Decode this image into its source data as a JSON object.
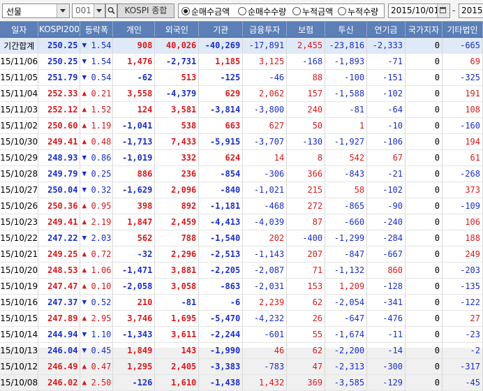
{
  "toolbar": {
    "market_select": "선물",
    "code": "001",
    "code_name": "KOSPI 종합",
    "radios": [
      {
        "label": "순매수금액",
        "selected": true
      },
      {
        "label": "순매수수량",
        "selected": false
      },
      {
        "label": "누적금액",
        "selected": false
      },
      {
        "label": "누적수량",
        "selected": false
      }
    ],
    "start_date": "2015/10/01",
    "date_separator": "-",
    "end_date": "2015/"
  },
  "table": {
    "headers": [
      "일자",
      "KOSPI200",
      "등락폭",
      "개인",
      "외국인",
      "기관",
      "금융투자",
      "보험",
      "투신",
      "연기금",
      "국가지자",
      "기타법인"
    ],
    "rows": [
      {
        "date": "기간합계",
        "kospi": "250.25",
        "dir": "down",
        "chg": "1.54",
        "v": [
          "908",
          "40,026",
          "-40,269",
          "-17,891",
          "2,455",
          "-23,816",
          "-2,333",
          "0",
          "-665"
        ],
        "total": true
      },
      {
        "date": "15/11/06",
        "kospi": "250.25",
        "dir": "down",
        "chg": "1.54",
        "v": [
          "1,476",
          "-2,731",
          "1,185",
          "3,125",
          "-168",
          "-1,893",
          "-71",
          "0",
          "69"
        ]
      },
      {
        "date": "15/11/05",
        "kospi": "251.79",
        "dir": "down",
        "chg": "0.54",
        "v": [
          "-62",
          "513",
          "-125",
          "-46",
          "88",
          "-100",
          "-151",
          "0",
          "-325"
        ]
      },
      {
        "date": "15/11/04",
        "kospi": "252.33",
        "dir": "up",
        "chg": "0.21",
        "v": [
          "3,558",
          "-4,379",
          "629",
          "2,062",
          "157",
          "-1,588",
          "-102",
          "0",
          "191"
        ]
      },
      {
        "date": "15/11/03",
        "kospi": "252.12",
        "dir": "up",
        "chg": "1.52",
        "v": [
          "124",
          "3,581",
          "-3,814",
          "-3,800",
          "240",
          "-81",
          "-64",
          "0",
          "108"
        ]
      },
      {
        "date": "15/11/02",
        "kospi": "250.60",
        "dir": "up",
        "chg": "1.19",
        "v": [
          "-1,041",
          "538",
          "663",
          "627",
          "50",
          "1",
          "-10",
          "0",
          "-160"
        ]
      },
      {
        "date": "15/10/30",
        "kospi": "249.41",
        "dir": "up",
        "chg": "0.48",
        "v": [
          "-1,713",
          "7,433",
          "-5,915",
          "-3,707",
          "-130",
          "-1,927",
          "-106",
          "0",
          "194"
        ]
      },
      {
        "date": "15/10/29",
        "kospi": "248.93",
        "dir": "down",
        "chg": "0.86",
        "v": [
          "-1,019",
          "332",
          "624",
          "14",
          "8",
          "542",
          "67",
          "0",
          "61"
        ]
      },
      {
        "date": "15/10/28",
        "kospi": "249.79",
        "dir": "down",
        "chg": "0.25",
        "v": [
          "886",
          "236",
          "-854",
          "-306",
          "366",
          "-843",
          "-21",
          "0",
          "-268"
        ]
      },
      {
        "date": "15/10/27",
        "kospi": "250.04",
        "dir": "down",
        "chg": "0.32",
        "v": [
          "-1,629",
          "2,096",
          "-840",
          "-1,021",
          "215",
          "58",
          "-102",
          "0",
          "373"
        ]
      },
      {
        "date": "15/10/26",
        "kospi": "250.36",
        "dir": "up",
        "chg": "0.95",
        "v": [
          "398",
          "892",
          "-1,181",
          "-468",
          "272",
          "-865",
          "-90",
          "0",
          "-109"
        ]
      },
      {
        "date": "15/10/23",
        "kospi": "249.41",
        "dir": "up",
        "chg": "2.19",
        "v": [
          "1,847",
          "2,459",
          "-4,413",
          "-4,039",
          "87",
          "-660",
          "-240",
          "0",
          "106"
        ]
      },
      {
        "date": "15/10/22",
        "kospi": "247.22",
        "dir": "down",
        "chg": "2.03",
        "v": [
          "562",
          "788",
          "-1,540",
          "202",
          "-400",
          "-1,299",
          "-284",
          "0",
          "188"
        ]
      },
      {
        "date": "15/10/21",
        "kospi": "249.25",
        "dir": "up",
        "chg": "0.72",
        "v": [
          "-32",
          "2,296",
          "-2,513",
          "-1,143",
          "207",
          "-847",
          "-667",
          "0",
          "249"
        ]
      },
      {
        "date": "15/10/20",
        "kospi": "248.53",
        "dir": "up",
        "chg": "1.06",
        "v": [
          "-1,471",
          "3,881",
          "-2,205",
          "-2,087",
          "71",
          "-1,132",
          "860",
          "0",
          "-203"
        ]
      },
      {
        "date": "15/10/19",
        "kospi": "247.47",
        "dir": "up",
        "chg": "0.10",
        "v": [
          "-2,058",
          "3,058",
          "-863",
          "-2,031",
          "153",
          "1,209",
          "-128",
          "0",
          "-135"
        ]
      },
      {
        "date": "15/10/16",
        "kospi": "247.37",
        "dir": "down",
        "chg": "0.52",
        "v": [
          "210",
          "-81",
          "-6",
          "2,239",
          "62",
          "-2,054",
          "-341",
          "0",
          "-122"
        ]
      },
      {
        "date": "15/10/15",
        "kospi": "247.89",
        "dir": "up",
        "chg": "2.95",
        "v": [
          "3,746",
          "1,695",
          "-5,470",
          "-4,232",
          "26",
          "-647",
          "-476",
          "0",
          "27"
        ]
      },
      {
        "date": "15/10/14",
        "kospi": "244.94",
        "dir": "down",
        "chg": "1.10",
        "v": [
          "-1,343",
          "3,611",
          "-2,244",
          "-601",
          "55",
          "-1,674",
          "-11",
          "0",
          "-23"
        ]
      },
      {
        "date": "15/10/13",
        "kospi": "246.04",
        "dir": "down",
        "chg": "0.45",
        "v": [
          "1,849",
          "143",
          "-1,990",
          "46",
          "62",
          "-2,200",
          "-14",
          "0",
          "-2"
        ]
      },
      {
        "date": "15/10/12",
        "kospi": "246.49",
        "dir": "up",
        "chg": "0.47",
        "v": [
          "1,295",
          "2,405",
          "-3,383",
          "-783",
          "47",
          "-2,313",
          "-300",
          "0",
          "-317"
        ]
      },
      {
        "date": "15/10/08",
        "kospi": "246.02",
        "dir": "up",
        "chg": "2.50",
        "v": [
          "-126",
          "1,610",
          "-1,438",
          "1,432",
          "369",
          "-3,585",
          "-129",
          "0",
          "-45"
        ]
      }
    ]
  },
  "colors": {
    "header_bg": "#5b7fb6",
    "up": "#d7191c",
    "down": "#1a2ec8",
    "total_row_bg": "#dfe9f7"
  }
}
